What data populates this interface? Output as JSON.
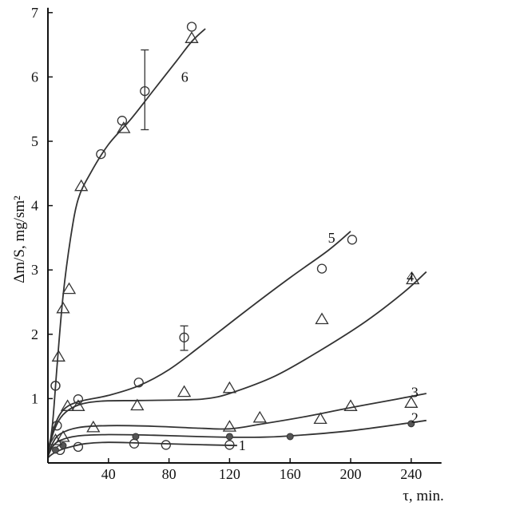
{
  "chart_data": {
    "type": "scatter",
    "xlabel": "τ, min.",
    "ylabel": "Δm/S, mg/sm²",
    "xlim": [
      0,
      260
    ],
    "ylim": [
      0,
      7
    ],
    "xticks": [
      40,
      80,
      120,
      160,
      200,
      240
    ],
    "yticks": [
      1,
      2,
      3,
      4,
      5,
      6,
      7
    ],
    "grid": false,
    "series": [
      {
        "name": "1",
        "curve": [
          [
            0,
            0.08
          ],
          [
            3,
            0.14
          ],
          [
            8,
            0.2
          ],
          [
            15,
            0.25
          ],
          [
            25,
            0.3
          ],
          [
            40,
            0.32
          ],
          [
            60,
            0.31
          ],
          [
            90,
            0.29
          ],
          [
            125,
            0.27
          ]
        ],
        "points_circle": [
          [
            8,
            0.2
          ],
          [
            20,
            0.25
          ],
          [
            57,
            0.3
          ],
          [
            78,
            0.28
          ],
          [
            120,
            0.28
          ]
        ],
        "points_filled": []
      },
      {
        "name": "2",
        "curve": [
          [
            0,
            0.1
          ],
          [
            3,
            0.25
          ],
          [
            8,
            0.35
          ],
          [
            20,
            0.42
          ],
          [
            40,
            0.44
          ],
          [
            70,
            0.43
          ],
          [
            100,
            0.41
          ],
          [
            120,
            0.4
          ],
          [
            140,
            0.4
          ],
          [
            160,
            0.42
          ],
          [
            200,
            0.5
          ],
          [
            250,
            0.66
          ]
        ],
        "points_circle": [],
        "points_filled": [
          [
            5,
            0.2
          ],
          [
            10,
            0.27
          ],
          [
            58,
            0.41
          ],
          [
            120,
            0.41
          ],
          [
            160,
            0.41
          ],
          [
            240,
            0.61
          ]
        ]
      },
      {
        "name": "3",
        "curve": [
          [
            0,
            0.1
          ],
          [
            3,
            0.3
          ],
          [
            8,
            0.45
          ],
          [
            20,
            0.55
          ],
          [
            40,
            0.58
          ],
          [
            70,
            0.57
          ],
          [
            100,
            0.54
          ],
          [
            120,
            0.53
          ],
          [
            140,
            0.6
          ],
          [
            170,
            0.72
          ],
          [
            200,
            0.86
          ],
          [
            230,
            0.99
          ],
          [
            250,
            1.08
          ]
        ],
        "points_triangle": [
          [
            5,
            0.35
          ],
          [
            10,
            0.4
          ],
          [
            30,
            0.55
          ],
          [
            120,
            0.56
          ],
          [
            140,
            0.7
          ],
          [
            180,
            0.68
          ],
          [
            200,
            0.88
          ],
          [
            240,
            0.93
          ]
        ],
        "points_circle": []
      },
      {
        "name": "4",
        "curve": [
          [
            0,
            0.15
          ],
          [
            4,
            0.5
          ],
          [
            10,
            0.75
          ],
          [
            20,
            0.9
          ],
          [
            35,
            0.96
          ],
          [
            60,
            0.97
          ],
          [
            90,
            0.98
          ],
          [
            105,
            1.0
          ],
          [
            120,
            1.08
          ],
          [
            150,
            1.35
          ],
          [
            180,
            1.75
          ],
          [
            210,
            2.2
          ],
          [
            235,
            2.65
          ],
          [
            250,
            2.97
          ]
        ],
        "points_triangle": [
          [
            13,
            0.88
          ],
          [
            20,
            0.88
          ],
          [
            59,
            0.89
          ],
          [
            90,
            1.1
          ],
          [
            120,
            1.16
          ],
          [
            181,
            2.23
          ],
          [
            241,
            2.85
          ]
        ],
        "points_circle": []
      },
      {
        "name": "5",
        "curve": [
          [
            0,
            0.2
          ],
          [
            4,
            0.55
          ],
          [
            10,
            0.82
          ],
          [
            20,
            0.95
          ],
          [
            40,
            1.05
          ],
          [
            60,
            1.2
          ],
          [
            80,
            1.45
          ],
          [
            100,
            1.8
          ],
          [
            130,
            2.35
          ],
          [
            160,
            2.88
          ],
          [
            185,
            3.3
          ],
          [
            200,
            3.6
          ]
        ],
        "points_circle": [
          [
            5,
            1.2
          ],
          [
            6,
            0.58
          ],
          [
            20,
            0.99
          ],
          [
            60,
            1.25
          ],
          [
            90,
            1.95
          ],
          [
            181,
            3.02
          ],
          [
            201,
            3.47
          ]
        ],
        "points_triangle": []
      },
      {
        "name": "6",
        "curve": [
          [
            0,
            0.1
          ],
          [
            3,
            0.6
          ],
          [
            6,
            1.5
          ],
          [
            10,
            2.6
          ],
          [
            15,
            3.5
          ],
          [
            20,
            4.1
          ],
          [
            28,
            4.5
          ],
          [
            40,
            4.95
          ],
          [
            55,
            5.35
          ],
          [
            70,
            5.8
          ],
          [
            85,
            6.25
          ],
          [
            95,
            6.55
          ],
          [
            104,
            6.75
          ]
        ],
        "points_triangle": [
          [
            7,
            1.65
          ],
          [
            10,
            2.4
          ],
          [
            14,
            2.7
          ],
          [
            22,
            4.3
          ],
          [
            50,
            5.2
          ],
          [
            95,
            6.6
          ]
        ],
        "points_circle": [
          [
            5,
            1.2
          ],
          [
            35,
            4.8
          ],
          [
            49,
            5.32
          ],
          [
            64,
            5.78
          ],
          [
            95,
            6.78
          ]
        ]
      }
    ],
    "error_bars": [
      {
        "x": 64,
        "y": 5.78,
        "low": 5.18,
        "high": 6.42
      },
      {
        "x": 90,
        "y": 1.95,
        "low": 1.75,
        "high": 2.13
      }
    ],
    "curve_labels": [
      {
        "text": "1",
        "x": 126,
        "y": 0.27
      },
      {
        "text": "2",
        "x": 240,
        "y": 0.7
      },
      {
        "text": "3",
        "x": 240,
        "y": 1.1
      },
      {
        "text": "4",
        "x": 237,
        "y": 2.9
      },
      {
        "text": "5",
        "x": 185,
        "y": 3.5
      },
      {
        "text": "6",
        "x": 88,
        "y": 6.0
      }
    ]
  }
}
